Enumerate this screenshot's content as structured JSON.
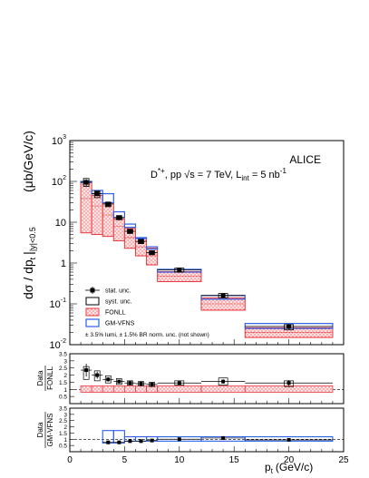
{
  "chart_data": {
    "type": "scatter",
    "experiment": "ALICE",
    "title_line1": "D",
    "title_sup1": "*+",
    "title_line2": ", pp √s = 7 TeV, L",
    "title_sub": "int",
    "title_line3": " = 5 nb",
    "title_sup2": "-1",
    "ylabel": "dσ / dp",
    "ylabel_sub": "t",
    "ylabel_range": "|y|<0.5",
    "ylabel_units": "(μb/GeV/c)",
    "xlabel": "p",
    "xlabel_sub": "t",
    "xlabel_units": "(GeV/c)",
    "xlim": [
      0,
      25
    ],
    "ylim": [
      0.01,
      1000
    ],
    "yscale": "log",
    "x_ticks": [
      "0",
      "5",
      "10",
      "15",
      "20",
      "25"
    ],
    "y_ticks": [
      {
        "mant": "10",
        "exp": "-2",
        "v": 0.01
      },
      {
        "mant": "10",
        "exp": "-1",
        "v": 0.1
      },
      {
        "mant": "1",
        "exp": "",
        "v": 1
      },
      {
        "mant": "10",
        "exp": "",
        "v": 10
      },
      {
        "mant": "10",
        "exp": "2",
        "v": 100
      },
      {
        "mant": "10",
        "exp": "3",
        "v": 1000
      }
    ],
    "bins": [
      {
        "lo": 1,
        "hi": 2,
        "y": 95,
        "stat": 18,
        "syst_lo": 75,
        "syst_hi": 118,
        "fonll_lo": 5.5,
        "fonll_hi": 100,
        "fonll_c": 38,
        "gm_lo": 100,
        "gm_hi": 100,
        "r_f": 2.35,
        "r_f_stat": 0.45,
        "r_f_sys": [
          1.7,
          2.6
        ],
        "r_g": null
      },
      {
        "lo": 2,
        "hi": 3,
        "y": 50,
        "stat": 7,
        "syst_lo": 40,
        "syst_hi": 58,
        "fonll_lo": 5,
        "fonll_hi": 45,
        "fonll_c": 25,
        "gm_lo": 50,
        "gm_hi": 60,
        "r_f": 2.0,
        "r_f_stat": 0.25,
        "r_f_sys": [
          1.6,
          2.3
        ],
        "r_g": null
      },
      {
        "lo": 3,
        "hi": 4,
        "y": 28,
        "stat": 3,
        "syst_lo": 24,
        "syst_hi": 31,
        "fonll_lo": 4.5,
        "fonll_hi": 30,
        "fonll_c": 15,
        "gm_lo": 30,
        "gm_hi": 50,
        "r_f": 1.7,
        "r_f_stat": 0.15,
        "r_f_sys": [
          1.45,
          1.95
        ],
        "r_g": 0.75
      },
      {
        "lo": 4,
        "hi": 5,
        "y": 13,
        "stat": 1.3,
        "syst_lo": 11.5,
        "syst_hi": 14.5,
        "fonll_lo": 3.5,
        "fonll_hi": 12,
        "fonll_c": 8,
        "gm_lo": 13,
        "gm_hi": 18,
        "r_f": 1.55,
        "r_f_stat": 0.12,
        "r_f_sys": [
          1.35,
          1.75
        ],
        "r_g": 0.75
      },
      {
        "lo": 5,
        "hi": 6,
        "y": 6,
        "stat": 0.6,
        "syst_lo": 5.3,
        "syst_hi": 6.7,
        "fonll_lo": 2.3,
        "fonll_hi": 7,
        "fonll_c": 4.2,
        "gm_lo": 7.5,
        "gm_hi": 9,
        "r_f": 1.45,
        "r_f_stat": 0.1,
        "r_f_sys": [
          1.3,
          1.6
        ],
        "r_g": 0.85
      },
      {
        "lo": 6,
        "hi": 7,
        "y": 3.4,
        "stat": 0.35,
        "syst_lo": 3.0,
        "syst_hi": 3.8,
        "fonll_lo": 1.5,
        "fonll_hi": 4,
        "fonll_c": 2.5,
        "gm_lo": 4,
        "gm_hi": 4.2,
        "r_f": 1.4,
        "r_f_stat": 0.1,
        "r_f_sys": [
          1.25,
          1.55
        ],
        "r_g": 0.85
      },
      {
        "lo": 7,
        "hi": 8,
        "y": 1.8,
        "stat": 0.2,
        "syst_lo": 1.6,
        "syst_hi": 2.0,
        "fonll_lo": 0.9,
        "fonll_hi": 2.3,
        "fonll_c": 1.5,
        "gm_lo": 2.2,
        "gm_hi": 2.5,
        "r_f": 1.35,
        "r_f_stat": 0.1,
        "r_f_sys": [
          1.2,
          1.5
        ],
        "r_g": 0.9
      },
      {
        "lo": 8,
        "hi": 12,
        "y": 0.68,
        "stat": 0.05,
        "syst_lo": 0.6,
        "syst_hi": 0.75,
        "fonll_lo": 0.35,
        "fonll_hi": 0.62,
        "fonll_c": 0.48,
        "gm_lo": 0.6,
        "gm_hi": 0.7,
        "r_f": 1.45,
        "r_f_stat": 0.1,
        "r_f_sys": [
          1.3,
          1.6
        ],
        "r_g": 1.0
      },
      {
        "lo": 12,
        "hi": 16,
        "y": 0.16,
        "stat": 0.02,
        "syst_lo": 0.14,
        "syst_hi": 0.18,
        "fonll_lo": 0.07,
        "fonll_hi": 0.14,
        "fonll_c": 0.1,
        "gm_lo": 0.13,
        "gm_hi": 0.16,
        "r_f": 1.55,
        "r_f_stat": 0.15,
        "r_f_sys": [
          1.3,
          1.8
        ],
        "r_g": 1.1
      },
      {
        "lo": 16,
        "hi": 24,
        "y": 0.028,
        "stat": 0.004,
        "syst_lo": 0.023,
        "syst_hi": 0.031,
        "fonll_lo": 0.015,
        "fonll_hi": 0.026,
        "fonll_c": 0.02,
        "gm_lo": 0.025,
        "gm_hi": 0.033,
        "r_f": 1.45,
        "r_f_stat": 0.2,
        "r_f_sys": [
          1.2,
          1.6
        ],
        "r_g": 0.95
      }
    ],
    "legend": [
      {
        "kind": "stat",
        "label": "stat. unc."
      },
      {
        "kind": "syst",
        "label": "syst. unc."
      },
      {
        "kind": "fonll",
        "label": "FONLL"
      },
      {
        "kind": "gmvfns",
        "label": "GM-VFNS"
      }
    ],
    "note": "± 3.5% lumi, ± 1.5% BR norm. unc. (not shown)",
    "ratio1": {
      "label_num": "Data",
      "label_den": "FONLL",
      "ylim": [
        0,
        3.5
      ],
      "ticks": [
        "0.5",
        "1",
        "1.5",
        "2",
        "2.5",
        "3",
        "3.5"
      ]
    },
    "ratio2": {
      "label_num": "Data",
      "label_den": "GM-VFNS",
      "ylim": [
        0,
        3.5
      ],
      "ticks": [
        "0.5",
        "1",
        "1.5",
        "2",
        "2.5",
        "3",
        "3.5"
      ]
    },
    "colors": {
      "fonll": "#e8383d",
      "gmvfns": "#2d5fe8",
      "data": "#000000"
    }
  }
}
